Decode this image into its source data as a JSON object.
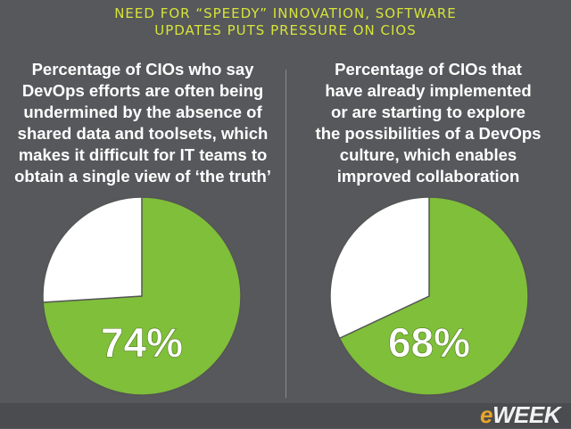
{
  "headline": {
    "line1": "NEED FOR “SPEEDY” INNOVATION, SOFTWARE",
    "line2": "UPDATES PUTS PRESSURE ON CIOS"
  },
  "colors": {
    "background": "#56585b",
    "headline": "#d7e33a",
    "pie_fill": "#7fbf3a",
    "pie_rest": "#ffffff",
    "pie_outline": "#555555"
  },
  "logo": {
    "e": "e",
    "rest": "WEEK"
  },
  "chart_data": [
    {
      "type": "pie",
      "caption_lines": [
        "Percentage of CIOs who say",
        "DevOps efforts are often being",
        "undermined by the absence of",
        "shared data and toolsets, which",
        "makes it difficult for IT teams to",
        "obtain a single view of  ‘the truth’"
      ],
      "value": 74,
      "label": "74%"
    },
    {
      "type": "pie",
      "caption_lines": [
        "Percentage of CIOs that",
        "have already implemented",
        "or are starting to explore",
        "the possibilities of a DevOps",
        "culture, which enables",
        "improved collaboration"
      ],
      "value": 68,
      "label": "68%"
    }
  ]
}
